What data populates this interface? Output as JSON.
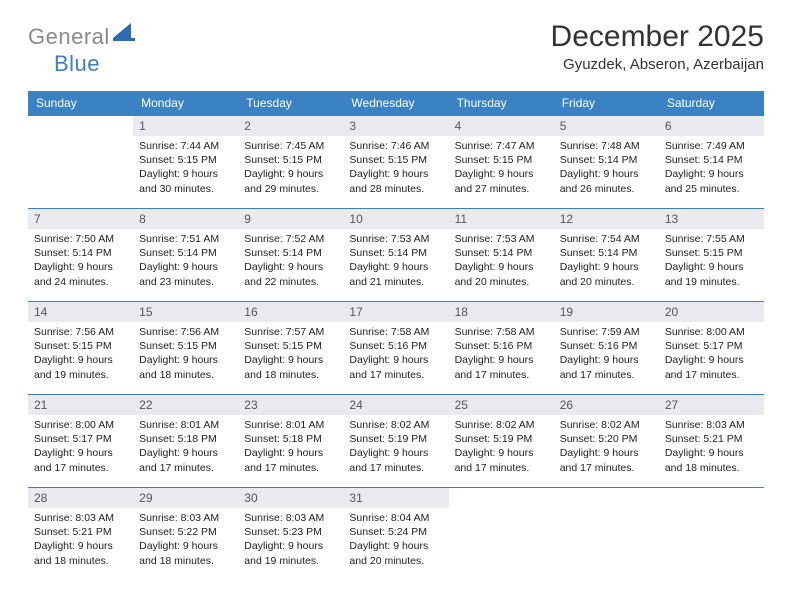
{
  "brand": {
    "part1": "General",
    "part2": "Blue"
  },
  "title": "December 2025",
  "location": "Gyuzdek, Abseron, Azerbaijan",
  "colors": {
    "header_bg": "#3b82c4",
    "header_text": "#ffffff",
    "cell_border": "#3b7fc4",
    "daynum_bg": "#e8eaed",
    "logo_gray": "#8a8a8a",
    "logo_blue": "#3b7fc4"
  },
  "dayHeaders": [
    "Sunday",
    "Monday",
    "Tuesday",
    "Wednesday",
    "Thursday",
    "Friday",
    "Saturday"
  ],
  "grid": [
    [
      null,
      {
        "n": "1",
        "sr": "Sunrise: 7:44 AM",
        "ss": "Sunset: 5:15 PM",
        "dl": "Daylight: 9 hours and 30 minutes."
      },
      {
        "n": "2",
        "sr": "Sunrise: 7:45 AM",
        "ss": "Sunset: 5:15 PM",
        "dl": "Daylight: 9 hours and 29 minutes."
      },
      {
        "n": "3",
        "sr": "Sunrise: 7:46 AM",
        "ss": "Sunset: 5:15 PM",
        "dl": "Daylight: 9 hours and 28 minutes."
      },
      {
        "n": "4",
        "sr": "Sunrise: 7:47 AM",
        "ss": "Sunset: 5:15 PM",
        "dl": "Daylight: 9 hours and 27 minutes."
      },
      {
        "n": "5",
        "sr": "Sunrise: 7:48 AM",
        "ss": "Sunset: 5:14 PM",
        "dl": "Daylight: 9 hours and 26 minutes."
      },
      {
        "n": "6",
        "sr": "Sunrise: 7:49 AM",
        "ss": "Sunset: 5:14 PM",
        "dl": "Daylight: 9 hours and 25 minutes."
      }
    ],
    [
      {
        "n": "7",
        "sr": "Sunrise: 7:50 AM",
        "ss": "Sunset: 5:14 PM",
        "dl": "Daylight: 9 hours and 24 minutes."
      },
      {
        "n": "8",
        "sr": "Sunrise: 7:51 AM",
        "ss": "Sunset: 5:14 PM",
        "dl": "Daylight: 9 hours and 23 minutes."
      },
      {
        "n": "9",
        "sr": "Sunrise: 7:52 AM",
        "ss": "Sunset: 5:14 PM",
        "dl": "Daylight: 9 hours and 22 minutes."
      },
      {
        "n": "10",
        "sr": "Sunrise: 7:53 AM",
        "ss": "Sunset: 5:14 PM",
        "dl": "Daylight: 9 hours and 21 minutes."
      },
      {
        "n": "11",
        "sr": "Sunrise: 7:53 AM",
        "ss": "Sunset: 5:14 PM",
        "dl": "Daylight: 9 hours and 20 minutes."
      },
      {
        "n": "12",
        "sr": "Sunrise: 7:54 AM",
        "ss": "Sunset: 5:14 PM",
        "dl": "Daylight: 9 hours and 20 minutes."
      },
      {
        "n": "13",
        "sr": "Sunrise: 7:55 AM",
        "ss": "Sunset: 5:15 PM",
        "dl": "Daylight: 9 hours and 19 minutes."
      }
    ],
    [
      {
        "n": "14",
        "sr": "Sunrise: 7:56 AM",
        "ss": "Sunset: 5:15 PM",
        "dl": "Daylight: 9 hours and 19 minutes."
      },
      {
        "n": "15",
        "sr": "Sunrise: 7:56 AM",
        "ss": "Sunset: 5:15 PM",
        "dl": "Daylight: 9 hours and 18 minutes."
      },
      {
        "n": "16",
        "sr": "Sunrise: 7:57 AM",
        "ss": "Sunset: 5:15 PM",
        "dl": "Daylight: 9 hours and 18 minutes."
      },
      {
        "n": "17",
        "sr": "Sunrise: 7:58 AM",
        "ss": "Sunset: 5:16 PM",
        "dl": "Daylight: 9 hours and 17 minutes."
      },
      {
        "n": "18",
        "sr": "Sunrise: 7:58 AM",
        "ss": "Sunset: 5:16 PM",
        "dl": "Daylight: 9 hours and 17 minutes."
      },
      {
        "n": "19",
        "sr": "Sunrise: 7:59 AM",
        "ss": "Sunset: 5:16 PM",
        "dl": "Daylight: 9 hours and 17 minutes."
      },
      {
        "n": "20",
        "sr": "Sunrise: 8:00 AM",
        "ss": "Sunset: 5:17 PM",
        "dl": "Daylight: 9 hours and 17 minutes."
      }
    ],
    [
      {
        "n": "21",
        "sr": "Sunrise: 8:00 AM",
        "ss": "Sunset: 5:17 PM",
        "dl": "Daylight: 9 hours and 17 minutes."
      },
      {
        "n": "22",
        "sr": "Sunrise: 8:01 AM",
        "ss": "Sunset: 5:18 PM",
        "dl": "Daylight: 9 hours and 17 minutes."
      },
      {
        "n": "23",
        "sr": "Sunrise: 8:01 AM",
        "ss": "Sunset: 5:18 PM",
        "dl": "Daylight: 9 hours and 17 minutes."
      },
      {
        "n": "24",
        "sr": "Sunrise: 8:02 AM",
        "ss": "Sunset: 5:19 PM",
        "dl": "Daylight: 9 hours and 17 minutes."
      },
      {
        "n": "25",
        "sr": "Sunrise: 8:02 AM",
        "ss": "Sunset: 5:19 PM",
        "dl": "Daylight: 9 hours and 17 minutes."
      },
      {
        "n": "26",
        "sr": "Sunrise: 8:02 AM",
        "ss": "Sunset: 5:20 PM",
        "dl": "Daylight: 9 hours and 17 minutes."
      },
      {
        "n": "27",
        "sr": "Sunrise: 8:03 AM",
        "ss": "Sunset: 5:21 PM",
        "dl": "Daylight: 9 hours and 18 minutes."
      }
    ],
    [
      {
        "n": "28",
        "sr": "Sunrise: 8:03 AM",
        "ss": "Sunset: 5:21 PM",
        "dl": "Daylight: 9 hours and 18 minutes."
      },
      {
        "n": "29",
        "sr": "Sunrise: 8:03 AM",
        "ss": "Sunset: 5:22 PM",
        "dl": "Daylight: 9 hours and 18 minutes."
      },
      {
        "n": "30",
        "sr": "Sunrise: 8:03 AM",
        "ss": "Sunset: 5:23 PM",
        "dl": "Daylight: 9 hours and 19 minutes."
      },
      {
        "n": "31",
        "sr": "Sunrise: 8:04 AM",
        "ss": "Sunset: 5:24 PM",
        "dl": "Daylight: 9 hours and 20 minutes."
      },
      null,
      null,
      null
    ]
  ]
}
